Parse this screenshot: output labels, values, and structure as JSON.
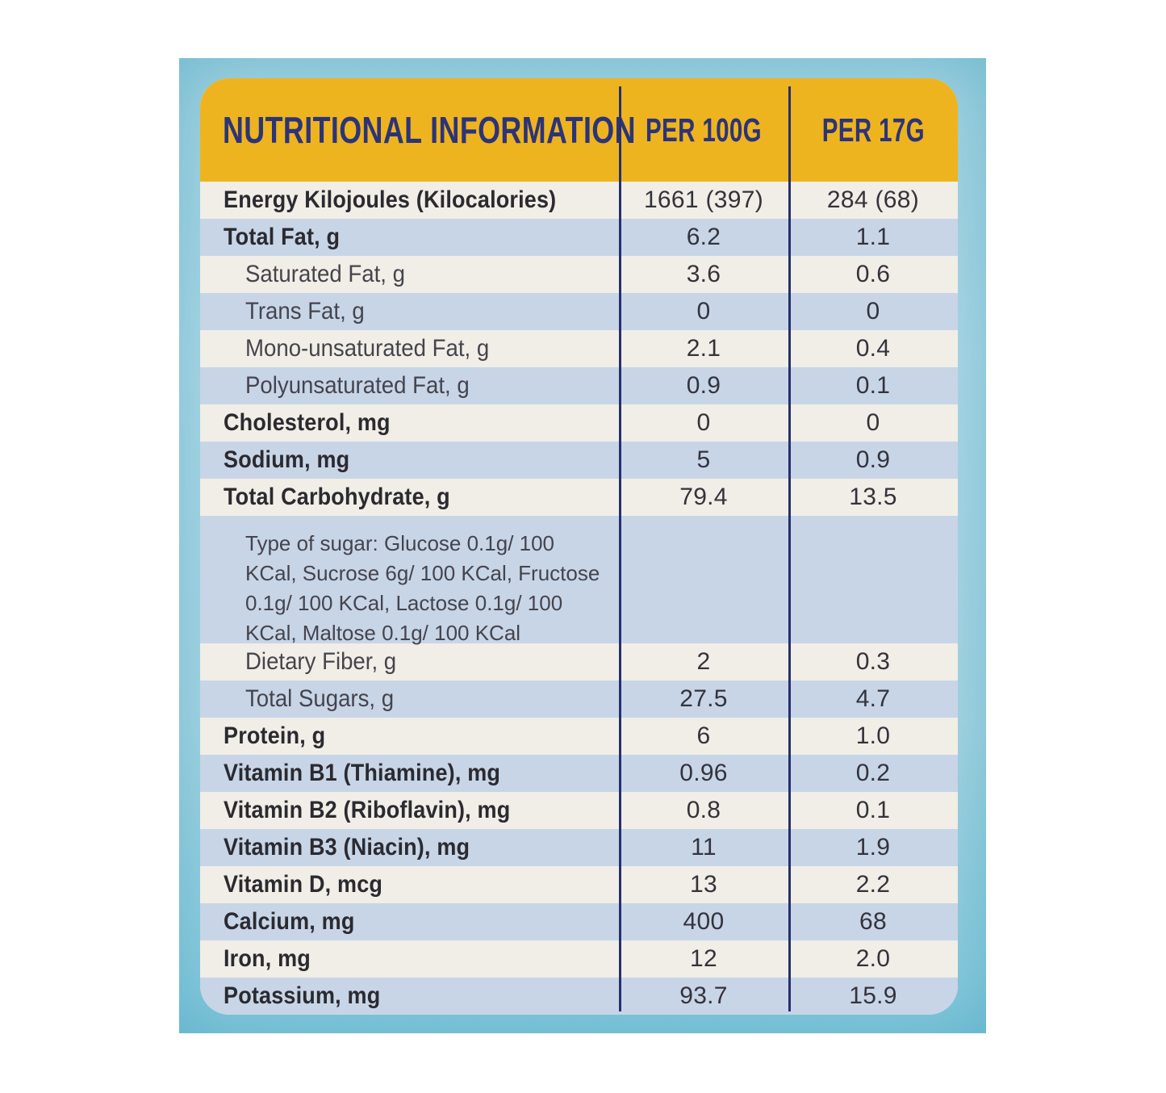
{
  "colors": {
    "page_bg": "#ffffff",
    "panel_blue": "#a9d6e3",
    "panel_blue_edge": "#7dc4d8",
    "card_bg": "#f0eee6",
    "header_yellow": "#eeb41f",
    "header_text_navy": "#2c3478",
    "divider_navy": "#26306e",
    "stripe_blue": "#c7d5e7",
    "label_text": "#2b2a30",
    "sub_label_text": "#45444c",
    "value_text": "#34333b"
  },
  "header": {
    "title": "NUTRITIONAL INFORMATION",
    "col_per_100g": "PER 100G",
    "col_per_17g": "PER 17G"
  },
  "rows": [
    {
      "label": "Energy Kilojoules (Kilocalories)",
      "per_100g": "1661 (397)",
      "per_17g": "284 (68)",
      "style": "bold",
      "band": "white"
    },
    {
      "label": "Total Fat, g",
      "per_100g": "6.2",
      "per_17g": "1.1",
      "style": "bold",
      "band": "blue"
    },
    {
      "label": "Saturated Fat, g",
      "per_100g": "3.6",
      "per_17g": "0.6",
      "style": "sub",
      "band": "white"
    },
    {
      "label": "Trans Fat, g",
      "per_100g": "0",
      "per_17g": "0",
      "style": "sub",
      "band": "blue"
    },
    {
      "label": "Mono-unsaturated Fat, g",
      "per_100g": "2.1",
      "per_17g": "0.4",
      "style": "sub",
      "band": "white"
    },
    {
      "label": "Polyunsaturated Fat, g",
      "per_100g": "0.9",
      "per_17g": "0.1",
      "style": "sub",
      "band": "blue"
    },
    {
      "label": "Cholesterol, mg",
      "per_100g": "0",
      "per_17g": "0",
      "style": "bold",
      "band": "white"
    },
    {
      "label": "Sodium, mg",
      "per_100g": "5",
      "per_17g": "0.9",
      "style": "bold",
      "band": "blue"
    },
    {
      "label": "Total Carbohydrate, g",
      "per_100g": "79.4",
      "per_17g": "13.5",
      "style": "bold",
      "band": "white"
    },
    {
      "label": "Type of sugar: Glucose 0.1g/ 100 KCal, Sucrose 6g/ 100 KCal, Fructose 0.1g/ 100 KCal, Lactose 0.1g/ 100 KCal, Maltose 0.1g/ 100 KCal",
      "per_100g": "",
      "per_17g": "",
      "style": "note",
      "band": "blue"
    },
    {
      "label": "Dietary Fiber, g",
      "per_100g": "2",
      "per_17g": "0.3",
      "style": "sub",
      "band": "white"
    },
    {
      "label": "Total Sugars, g",
      "per_100g": "27.5",
      "per_17g": "4.7",
      "style": "sub",
      "band": "blue"
    },
    {
      "label": "Protein, g",
      "per_100g": "6",
      "per_17g": "1.0",
      "style": "bold",
      "band": "white"
    },
    {
      "label": "Vitamin B1 (Thiamine), mg",
      "per_100g": "0.96",
      "per_17g": "0.2",
      "style": "bold",
      "band": "blue"
    },
    {
      "label": "Vitamin B2 (Riboflavin), mg",
      "per_100g": "0.8",
      "per_17g": "0.1",
      "style": "bold",
      "band": "white"
    },
    {
      "label": "Vitamin B3 (Niacin), mg",
      "per_100g": "11",
      "per_17g": "1.9",
      "style": "bold",
      "band": "blue"
    },
    {
      "label": "Vitamin D, mcg",
      "per_100g": "13",
      "per_17g": "2.2",
      "style": "bold",
      "band": "white"
    },
    {
      "label": "Calcium, mg",
      "per_100g": "400",
      "per_17g": "68",
      "style": "bold",
      "band": "blue"
    },
    {
      "label": "Iron, mg",
      "per_100g": "12",
      "per_17g": "2.0",
      "style": "bold",
      "band": "white"
    },
    {
      "label": "Potassium, mg",
      "per_100g": "93.7",
      "per_17g": "15.9",
      "style": "bold",
      "band": "blue"
    }
  ]
}
